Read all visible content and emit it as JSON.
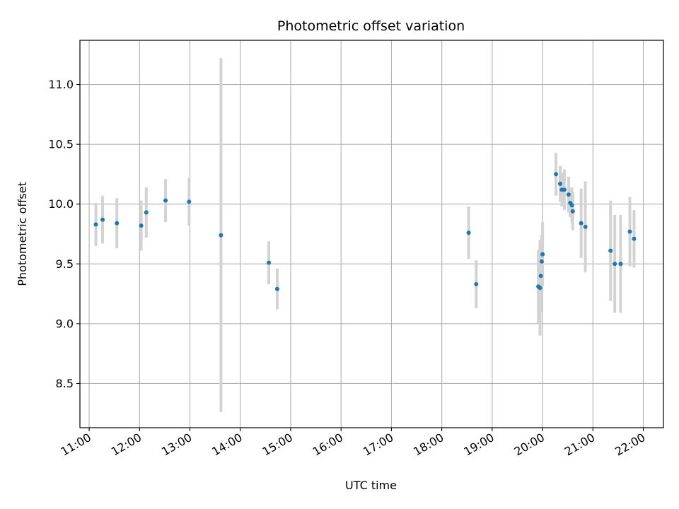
{
  "chart_data": {
    "type": "scatter",
    "title": "Photometric offset variation",
    "xlabel": "UTC time",
    "ylabel": "Photometric offset",
    "x_ticks": [
      "11:00",
      "12:00",
      "13:00",
      "14:00",
      "15:00",
      "16:00",
      "17:00",
      "18:00",
      "19:00",
      "20:00",
      "21:00",
      "22:00"
    ],
    "y_ticks": [
      "8.5",
      "9.0",
      "9.5",
      "10.0",
      "10.5",
      "11.0"
    ],
    "xlim": [
      "10:49",
      "22:24"
    ],
    "ylim": [
      8.13,
      11.37
    ],
    "grid": true,
    "colors": {
      "points": "#1f77b4",
      "errorbars": "#d3d3d3",
      "grid": "#b0b0b0"
    },
    "points": [
      {
        "x": "11:08",
        "y": 9.83,
        "err": 0.18
      },
      {
        "x": "11:16",
        "y": 9.87,
        "err": 0.2
      },
      {
        "x": "11:33",
        "y": 9.84,
        "err": 0.21
      },
      {
        "x": "12:02",
        "y": 9.82,
        "err": 0.21
      },
      {
        "x": "12:08",
        "y": 9.93,
        "err": 0.21
      },
      {
        "x": "12:31",
        "y": 10.03,
        "err": 0.18
      },
      {
        "x": "12:59",
        "y": 10.02,
        "err": 0.2
      },
      {
        "x": "13:37",
        "y": 9.74,
        "err": 1.48
      },
      {
        "x": "14:34",
        "y": 9.51,
        "err": 0.18
      },
      {
        "x": "14:44",
        "y": 9.29,
        "err": 0.17
      },
      {
        "x": "18:32",
        "y": 9.76,
        "err": 0.22
      },
      {
        "x": "18:41",
        "y": 9.33,
        "err": 0.2
      },
      {
        "x": "19:55",
        "y": 9.31,
        "err": 0.31
      },
      {
        "x": "19:57",
        "y": 9.3,
        "err": 0.4
      },
      {
        "x": "19:58",
        "y": 9.4,
        "err": 0.3
      },
      {
        "x": "19:59",
        "y": 9.52,
        "err": 0.22
      },
      {
        "x": "20:00",
        "y": 9.58,
        "err": 0.27
      },
      {
        "x": "20:16",
        "y": 10.25,
        "err": 0.18
      },
      {
        "x": "20:21",
        "y": 10.17,
        "err": 0.15
      },
      {
        "x": "20:23",
        "y": 10.12,
        "err": 0.14
      },
      {
        "x": "20:26",
        "y": 10.12,
        "err": 0.17
      },
      {
        "x": "20:31",
        "y": 10.08,
        "err": 0.15
      },
      {
        "x": "20:33",
        "y": 10.01,
        "err": 0.12
      },
      {
        "x": "20:35",
        "y": 9.99,
        "err": 0.15
      },
      {
        "x": "20:36",
        "y": 9.94,
        "err": 0.16
      },
      {
        "x": "20:46",
        "y": 9.84,
        "err": 0.29
      },
      {
        "x": "20:51",
        "y": 9.81,
        "err": 0.38
      },
      {
        "x": "21:21",
        "y": 9.61,
        "err": 0.42
      },
      {
        "x": "21:26",
        "y": 9.5,
        "err": 0.41
      },
      {
        "x": "21:33",
        "y": 9.5,
        "err": 0.41
      },
      {
        "x": "21:44",
        "y": 9.77,
        "err": 0.29
      },
      {
        "x": "21:49",
        "y": 9.71,
        "err": 0.24
      }
    ]
  }
}
